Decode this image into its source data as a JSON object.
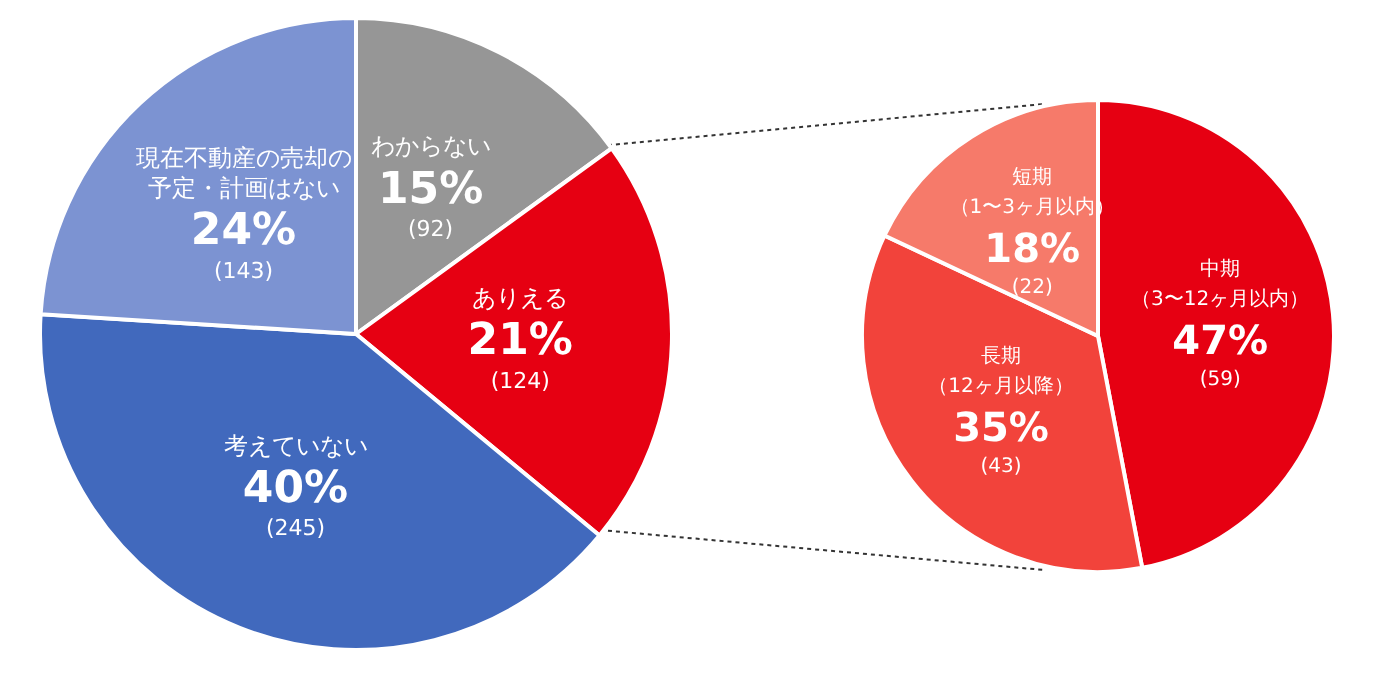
{
  "chart_data": [
    {
      "type": "pie",
      "categories": [
        "わからない",
        "ありえる",
        "考えていない",
        "現在不動産の売却の予定・計画はない"
      ],
      "values": [
        15,
        21,
        40,
        24
      ],
      "colors": [
        "#969696",
        "#e60012",
        "#4169bd",
        "#7c93d2"
      ],
      "value_labels": [
        "15%",
        "21%",
        "40%",
        "24%"
      ],
      "annotations": [
        "(92)",
        "(124)",
        "(245)",
        "(143)"
      ]
    },
    {
      "type": "pie",
      "categories": [
        "中期（3〜12ヶ月以内）",
        "長期（12ヶ月以降）",
        "短期（1〜3ヶ月以内）"
      ],
      "values": [
        47,
        35,
        18
      ],
      "colors": [
        "#e60012",
        "#f2433b",
        "#f67a6a"
      ],
      "value_labels": [
        "47%",
        "35%",
        "18%"
      ],
      "annotations": [
        "(59)",
        "(43)",
        "(22)"
      ]
    }
  ]
}
